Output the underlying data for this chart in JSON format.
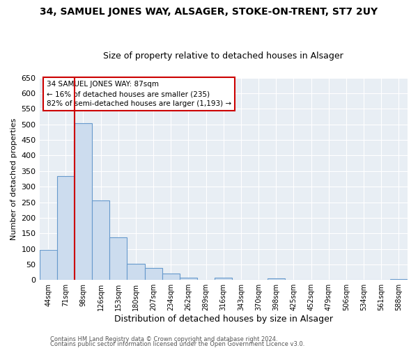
{
  "title": "34, SAMUEL JONES WAY, ALSAGER, STOKE-ON-TRENT, ST7 2UY",
  "subtitle": "Size of property relative to detached houses in Alsager",
  "xlabel": "Distribution of detached houses by size in Alsager",
  "ylabel": "Number of detached properties",
  "bar_labels": [
    "44sqm",
    "71sqm",
    "98sqm",
    "126sqm",
    "153sqm",
    "180sqm",
    "207sqm",
    "234sqm",
    "262sqm",
    "289sqm",
    "316sqm",
    "343sqm",
    "370sqm",
    "398sqm",
    "425sqm",
    "452sqm",
    "479sqm",
    "506sqm",
    "534sqm",
    "561sqm",
    "588sqm"
  ],
  "bar_values": [
    97,
    335,
    505,
    255,
    137,
    53,
    38,
    21,
    8,
    0,
    8,
    0,
    0,
    5,
    0,
    0,
    0,
    0,
    0,
    0,
    3
  ],
  "bar_color": "#ccdcee",
  "bar_edge_color": "#6699cc",
  "ylim": [
    0,
    650
  ],
  "yticks": [
    0,
    50,
    100,
    150,
    200,
    250,
    300,
    350,
    400,
    450,
    500,
    550,
    600,
    650
  ],
  "vline_x": 1.5,
  "vline_color": "#cc0000",
  "annotation_title": "34 SAMUEL JONES WAY: 87sqm",
  "annotation_line1": "← 16% of detached houses are smaller (235)",
  "annotation_line2": "82% of semi-detached houses are larger (1,193) →",
  "annotation_box_color": "#cc0000",
  "footer1": "Contains HM Land Registry data © Crown copyright and database right 2024.",
  "footer2": "Contains public sector information licensed under the Open Government Licence v3.0.",
  "fig_bg_color": "#ffffff",
  "plot_bg_color": "#e8eef4",
  "grid_color": "#ffffff",
  "title_fontsize": 10,
  "subtitle_fontsize": 9
}
